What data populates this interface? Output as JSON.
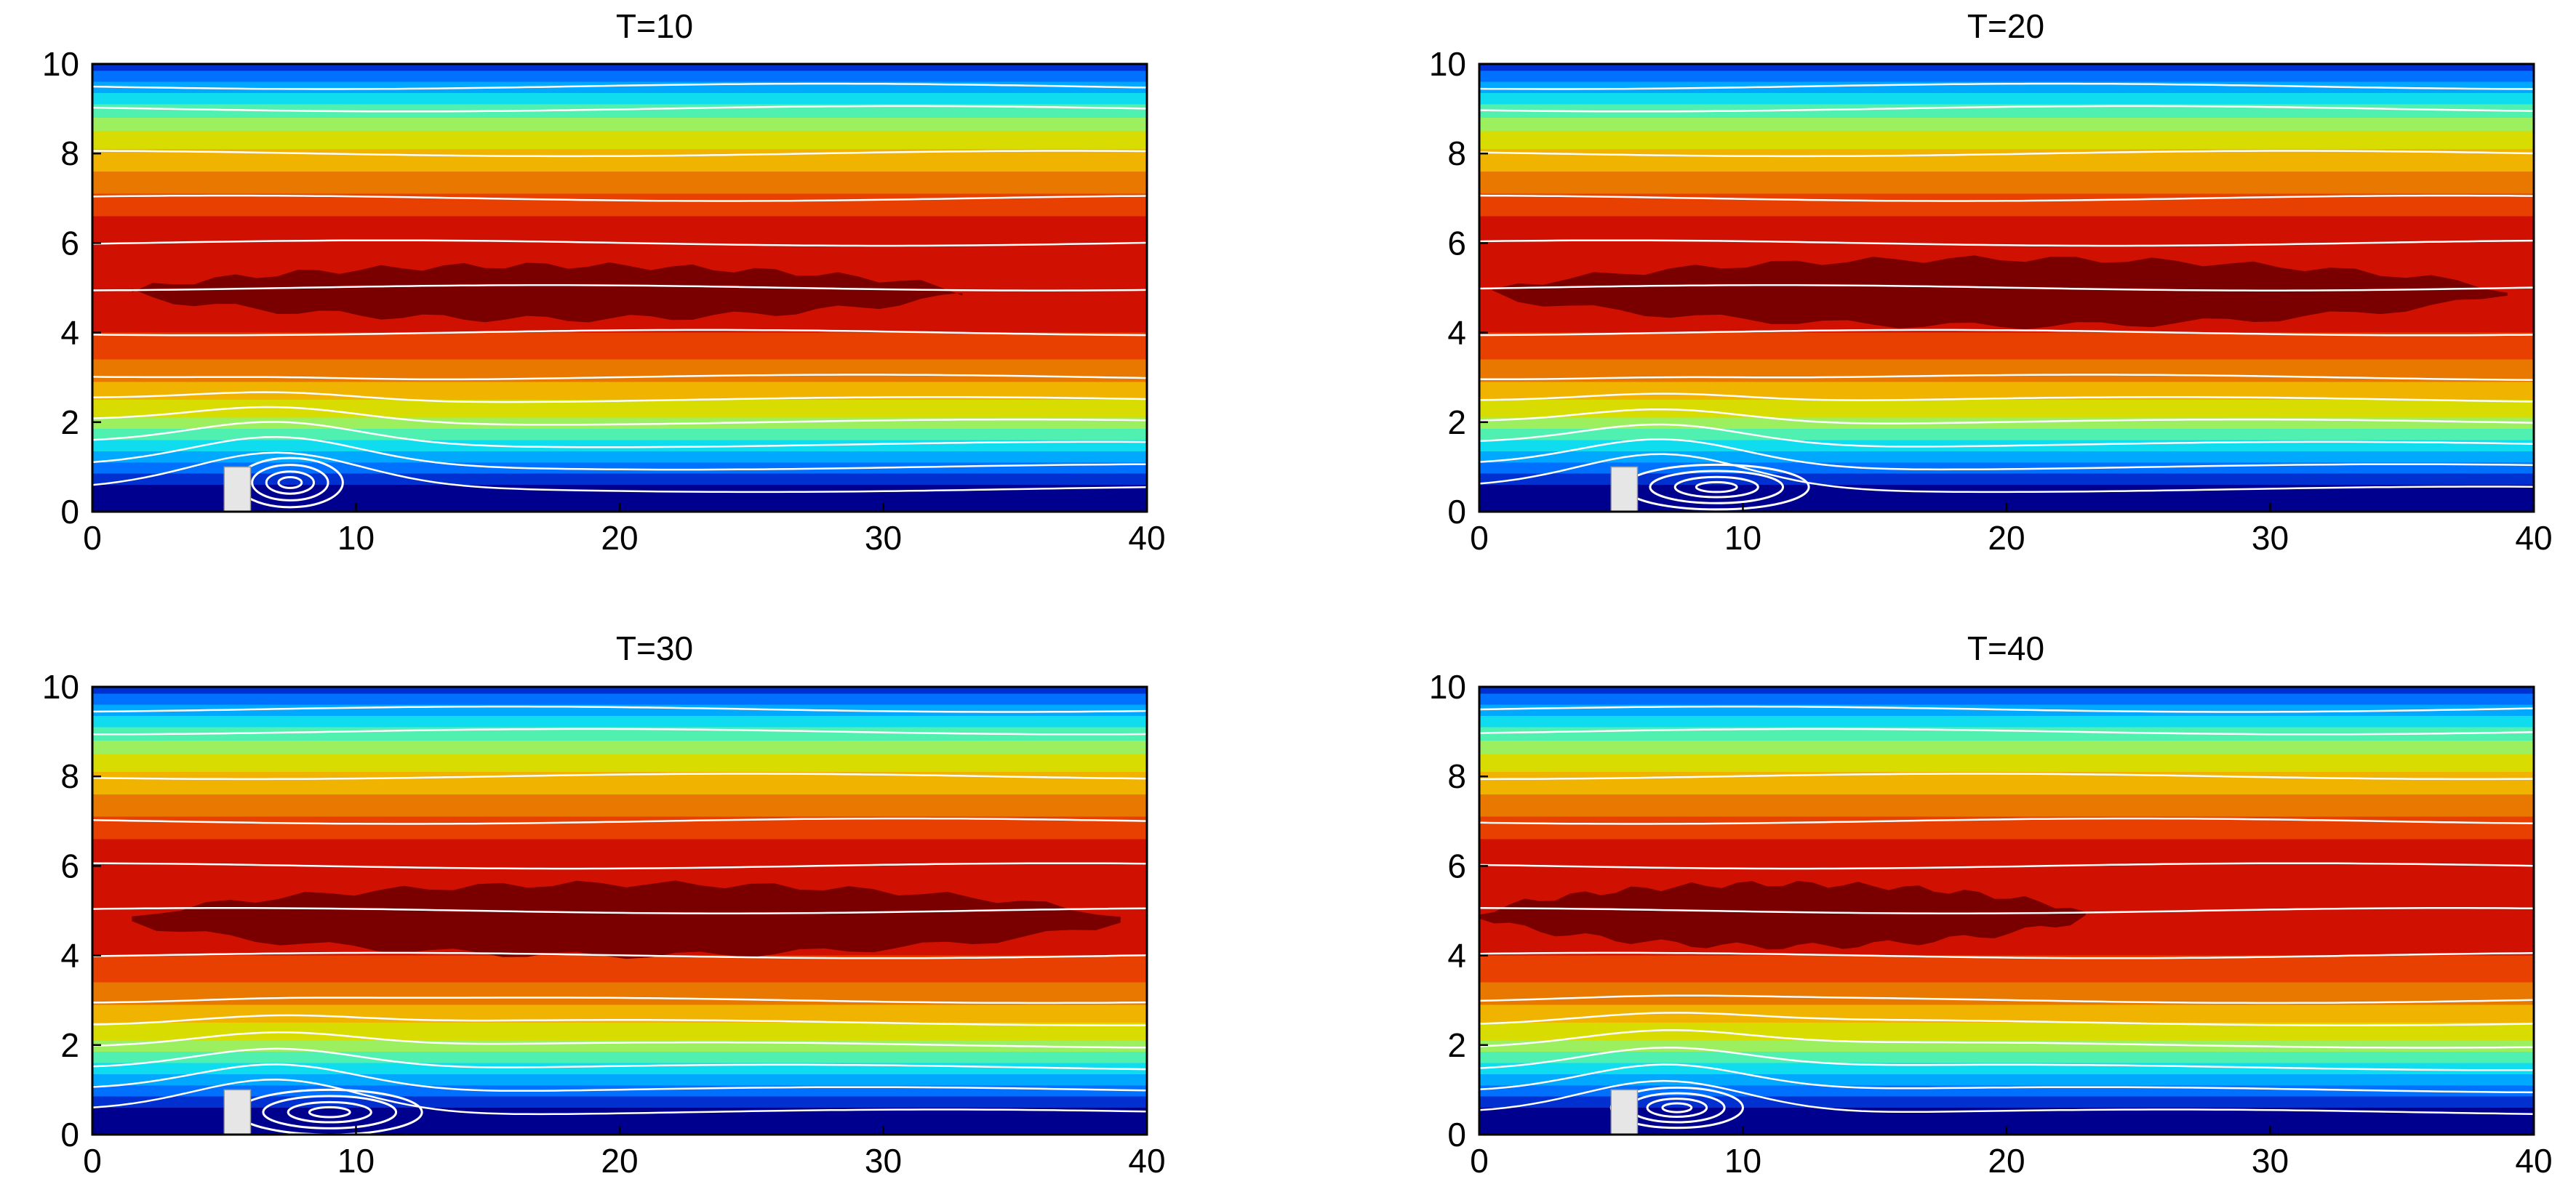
{
  "chart_data": [
    {
      "type": "heatmap",
      "title": "T=10",
      "xlabel": "",
      "ylabel": "",
      "xlim": [
        0,
        40
      ],
      "ylim": [
        0,
        10
      ],
      "xticks": [
        0,
        10,
        20,
        30,
        40
      ],
      "yticks": [
        0,
        2,
        4,
        6,
        8,
        10
      ],
      "grid": false,
      "obstacle": {
        "x0": 5,
        "x1": 6,
        "height": 1.0
      },
      "recirculation": {
        "x_start": 6,
        "x_end": 10,
        "height": 1.1,
        "center": [
          7.5,
          0.65
        ]
      },
      "dark_core": {
        "x_start": 1.5,
        "x_end": 33,
        "y_center": 4.9,
        "thickness": 1.2
      },
      "streamlines_y": [
        0.5,
        1.0,
        1.5,
        2.0,
        2.5,
        3.0,
        4.0,
        5.0,
        6.0,
        7.0,
        8.0,
        9.0,
        9.5
      ],
      "colormap": "jet"
    },
    {
      "type": "heatmap",
      "title": "T=20",
      "xlabel": "",
      "ylabel": "",
      "xlim": [
        0,
        40
      ],
      "ylim": [
        0,
        10
      ],
      "xticks": [
        0,
        10,
        20,
        30,
        40
      ],
      "yticks": [
        0,
        2,
        4,
        6,
        8,
        10
      ],
      "grid": false,
      "obstacle": {
        "x0": 5,
        "x1": 6,
        "height": 1.0
      },
      "recirculation": {
        "x_start": 6,
        "x_end": 13,
        "height": 1.0,
        "center": [
          9,
          0.55
        ]
      },
      "dark_core": {
        "x_start": 0.5,
        "x_end": 39,
        "y_center": 4.9,
        "thickness": 1.5
      },
      "streamlines_y": [
        0.5,
        1.0,
        1.5,
        2.0,
        2.5,
        3.0,
        4.0,
        5.0,
        6.0,
        7.0,
        8.0,
        9.0,
        9.5
      ],
      "colormap": "jet"
    },
    {
      "type": "heatmap",
      "title": "T=30",
      "xlabel": "",
      "ylabel": "",
      "xlim": [
        0,
        40
      ],
      "ylim": [
        0,
        10
      ],
      "xticks": [
        0,
        10,
        20,
        30,
        40
      ],
      "yticks": [
        0,
        2,
        4,
        6,
        8,
        10
      ],
      "grid": false,
      "obstacle": {
        "x0": 5,
        "x1": 6,
        "height": 1.0
      },
      "recirculation": {
        "x_start": 6,
        "x_end": 13,
        "height": 1.0,
        "center": [
          9,
          0.5
        ]
      },
      "dark_core": {
        "x_start": 1.5,
        "x_end": 39,
        "y_center": 4.8,
        "thickness": 1.6
      },
      "streamlines_y": [
        0.5,
        1.0,
        1.5,
        2.0,
        2.5,
        3.0,
        4.0,
        5.0,
        6.0,
        7.0,
        8.0,
        9.0,
        9.5
      ],
      "colormap": "jet"
    },
    {
      "type": "heatmap",
      "title": "T=40",
      "xlabel": "",
      "ylabel": "",
      "xlim": [
        0,
        40
      ],
      "ylim": [
        0,
        10
      ],
      "xticks": [
        0,
        10,
        20,
        30,
        40
      ],
      "yticks": [
        0,
        2,
        4,
        6,
        8,
        10
      ],
      "grid": false,
      "obstacle": {
        "x0": 5,
        "x1": 6,
        "height": 1.0
      },
      "recirculation": {
        "x_start": 6,
        "x_end": 11,
        "height": 0.9,
        "center": [
          7.5,
          0.6
        ]
      },
      "dark_core": {
        "x_start": 0,
        "x_end": 23,
        "y_center": 4.9,
        "thickness": 1.4
      },
      "streamlines_y": [
        0.5,
        1.0,
        1.5,
        2.0,
        2.5,
        3.0,
        4.0,
        5.0,
        6.0,
        7.0,
        8.0,
        9.0,
        9.5
      ],
      "colormap": "jet"
    }
  ],
  "colors": {
    "bands": [
      "#00008f",
      "#0030d0",
      "#0070ff",
      "#00a8ff",
      "#10dcf0",
      "#50f0b0",
      "#9cf060",
      "#d8dc00",
      "#f0b400",
      "#e87800",
      "#e84000",
      "#d01000",
      "#7a0000"
    ],
    "streamline": "#ffffff",
    "obstacle": "#e6e6e6"
  }
}
